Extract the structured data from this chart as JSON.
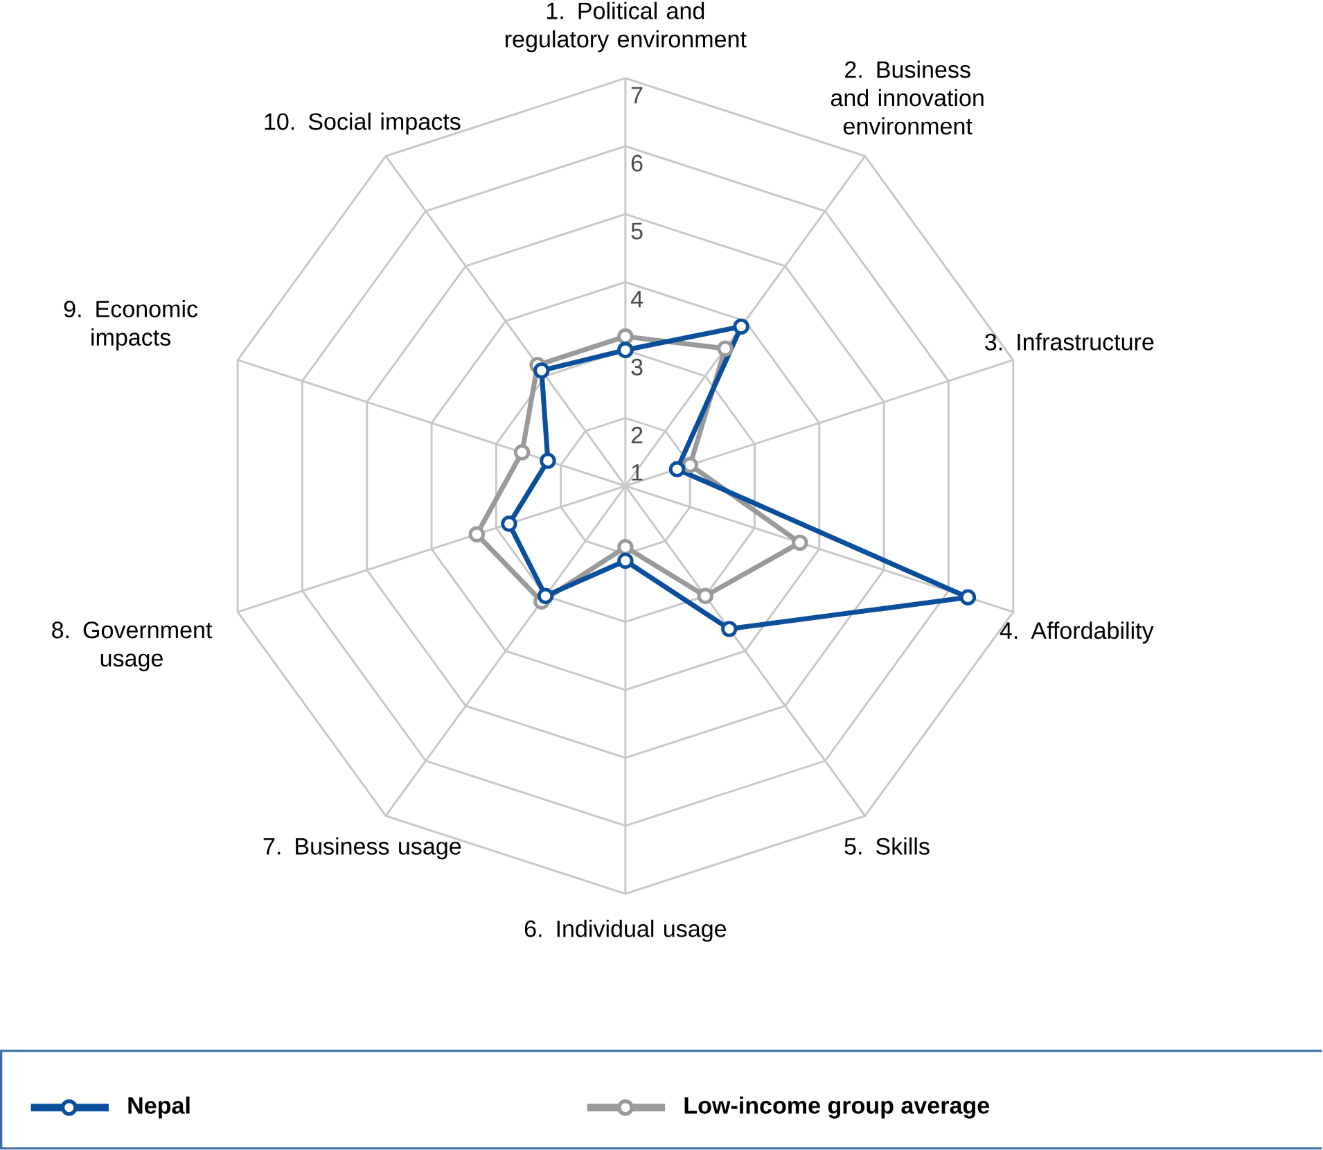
{
  "chart_data": {
    "type": "radar",
    "categories": [
      "1. Political and regulatory environment",
      "2. Business and innovation environment",
      "3. Infrastructure",
      "4. Affordability",
      "5. Skills",
      "6. Individual usage",
      "7. Business usage",
      "8. Government usage",
      "9. Economic impacts",
      "10. Social impacts"
    ],
    "series": [
      {
        "name": "Nepal",
        "color": "#0a4f9c",
        "values": [
          3.0,
          3.9,
          1.8,
          6.3,
          3.6,
          2.1,
          3.0,
          2.8,
          2.2,
          3.1
        ]
      },
      {
        "name": "Low-income group average",
        "color": "#9a9a9a",
        "values": [
          3.2,
          3.5,
          2.0,
          3.7,
          3.0,
          1.9,
          3.1,
          3.3,
          2.6,
          3.2
        ]
      }
    ],
    "ylim": [
      1,
      7
    ],
    "yticks": [
      1,
      2,
      3,
      4,
      5,
      6,
      7
    ],
    "grid": true,
    "legend": "bottom",
    "marker": "circle"
  }
}
